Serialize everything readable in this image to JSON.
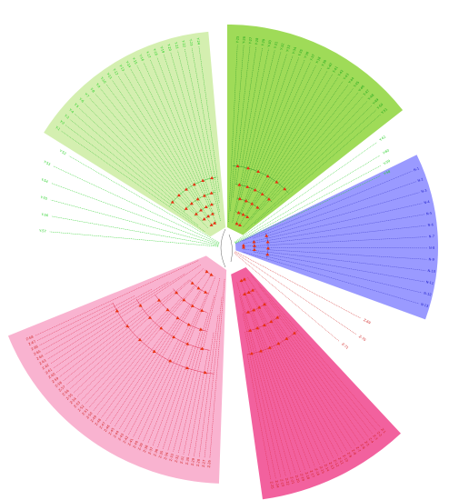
{
  "tree": {
    "clades": [
      {
        "name": "clade-light-green",
        "fill": "#d4efb0",
        "text_color": "#1fcf1f",
        "branch_color": "#30c030",
        "labels": [
          "Y-1",
          "Y-2",
          "Y-3",
          "Y-4",
          "Y-5",
          "Y-6",
          "Y-7",
          "Y-8",
          "Y-9",
          "Y-10",
          "Y-11",
          "Y-12",
          "Y-13",
          "Y-14",
          "Y-15",
          "Y-16",
          "Y-17",
          "Y-18",
          "Y-19",
          "Y-20",
          "Y-21",
          "Y-22",
          "Y-23",
          "Y-24"
        ]
      },
      {
        "name": "clade-green",
        "fill": "#9fdb58",
        "text_color": "#1aa61a",
        "branch_color": "#2a9a2a",
        "labels": [
          "Y-25",
          "Y-26",
          "Y-27",
          "Y-28",
          "Y-29",
          "Y-30",
          "Y-31",
          "Y-32",
          "Y-33",
          "Y-34",
          "Y-35",
          "Y-36",
          "Y-37",
          "Y-38",
          "Y-39",
          "Y-40",
          "Y-41",
          "Y-42",
          "Y-43",
          "Y-44",
          "Y-45",
          "Y-46",
          "Y-47",
          "Y-48",
          "Y-49",
          "Y-50",
          "Y-51"
        ]
      },
      {
        "name": "clade-blue",
        "fill": "#9a9aff",
        "text_color": "#2222cc",
        "branch_color": "#4040d0",
        "labels": [
          "N-1",
          "N-2",
          "N-3",
          "N-4",
          "N-5",
          "N-6",
          "N-7",
          "N-8",
          "N-9",
          "N-10",
          "N-11",
          "N-12",
          "N-13"
        ]
      },
      {
        "name": "clade-magenta",
        "fill": "#f2619e",
        "text_color": "#d02020",
        "branch_color": "#e03050",
        "labels": [
          "Z-1",
          "Z-2",
          "Z-3",
          "Z-4",
          "Z-5",
          "Z-6",
          "Z-7",
          "Z-8",
          "Z-9",
          "Z-10",
          "Z-11",
          "Z-12",
          "Z-13",
          "Z-14",
          "Z-15",
          "Z-16",
          "Z-17",
          "Z-18",
          "Z-19",
          "Z-20",
          "Z-21",
          "Z-22",
          "Z-23",
          "Z-24",
          "Z-25"
        ]
      },
      {
        "name": "clade-pink",
        "fill": "#f9b3d0",
        "text_color": "#d02020",
        "branch_color": "#e03050",
        "labels": [
          "Z-26",
          "Z-27",
          "Z-28",
          "Z-29",
          "Z-30",
          "Z-31",
          "Z-32",
          "Z-33",
          "Z-34",
          "Z-35",
          "Z-36",
          "Z-37",
          "Z-38",
          "Z-39",
          "Z-40",
          "Z-41",
          "Z-42",
          "Z-43",
          "Z-44",
          "Z-45",
          "Z-46",
          "Z-47",
          "Z-48",
          "Z-49",
          "Z-50",
          "Z-51",
          "Z-52",
          "Z-53",
          "Z-54",
          "Z-55",
          "Z-56",
          "Z-57",
          "Z-58",
          "Z-59",
          "Z-60",
          "Z-61",
          "Z-62",
          "Z-63",
          "Z-64",
          "Z-65",
          "Z-66",
          "Z-67",
          "Z-68"
        ]
      }
    ],
    "outliers": [
      {
        "label": "Y-52",
        "color": "#1fcf1f"
      },
      {
        "label": "Y-53",
        "color": "#1fcf1f"
      },
      {
        "label": "Y-54",
        "color": "#1fcf1f"
      },
      {
        "label": "Y-55",
        "color": "#1fcf1f"
      },
      {
        "label": "Y-56",
        "color": "#1fcf1f"
      },
      {
        "label": "Y-57",
        "color": "#1fcf1f"
      },
      {
        "label": "Y-58",
        "color": "#1fcf1f"
      },
      {
        "label": "Y-59",
        "color": "#1fcf1f"
      },
      {
        "label": "Y-60",
        "color": "#1fcf1f"
      },
      {
        "label": "Y-61",
        "color": "#1fcf1f"
      },
      {
        "label": "Z-69",
        "color": "#d02020"
      },
      {
        "label": "Z-70",
        "color": "#d02020"
      },
      {
        "label": "Z-71",
        "color": "#d02020"
      }
    ],
    "node_marker_color": "#e83010"
  }
}
